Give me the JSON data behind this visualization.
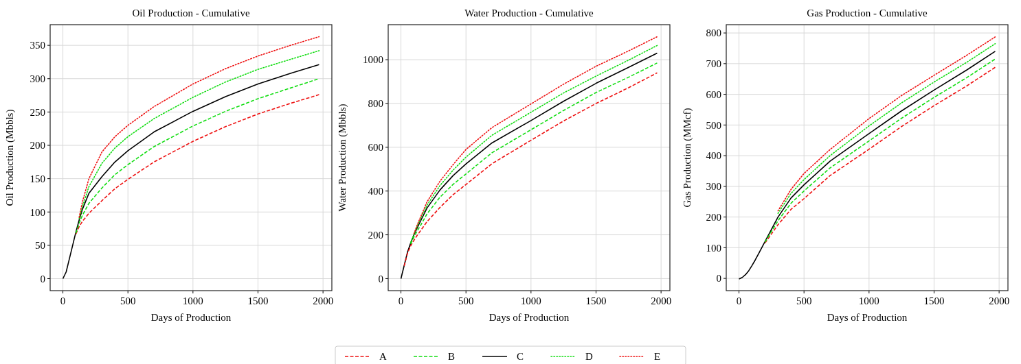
{
  "chart_data": [
    {
      "type": "line",
      "title": "Oil Production - Cumulative",
      "xlabel": "Days of Production",
      "ylabel": "Oil Production (Mbbls)",
      "x": [
        0,
        25,
        50,
        75,
        100,
        125,
        150,
        200,
        300,
        400,
        500,
        700,
        1000,
        1250,
        1500,
        1750,
        1970
      ],
      "xlim": [
        -98,
        2068
      ],
      "xticks": [
        0,
        500,
        1000,
        1500,
        2000
      ],
      "ylim": [
        -18,
        381
      ],
      "yticks": [
        0,
        50,
        100,
        150,
        200,
        250,
        300,
        350
      ],
      "grid": true,
      "legend": "bottom",
      "series": [
        {
          "name": "A",
          "color": "#ee1111",
          "line_style": "dashed",
          "values": [
            null,
            null,
            null,
            null,
            67,
            78,
            86,
            98,
            117,
            135,
            149,
            175,
            206,
            228,
            247,
            263,
            276
          ]
        },
        {
          "name": "B",
          "color": "#11dd11",
          "line_style": "dashed",
          "values": [
            null,
            null,
            null,
            null,
            68,
            83,
            95,
            113,
            136,
            156,
            171,
            198,
            229,
            251,
            270,
            286,
            300
          ]
        },
        {
          "name": "C",
          "color": "#000000",
          "line_style": "solid",
          "values": [
            0,
            10,
            30,
            50,
            70,
            88,
            104,
            128,
            153,
            175,
            192,
            220,
            251,
            273,
            292,
            308,
            321
          ]
        },
        {
          "name": "D",
          "color": "#11dd11",
          "line_style": "dotted",
          "values": [
            null,
            null,
            null,
            null,
            null,
            90,
            108,
            138,
            173,
            196,
            213,
            240,
            272,
            295,
            314,
            329,
            342
          ]
        },
        {
          "name": "E",
          "color": "#ee1111",
          "line_style": "dotted",
          "values": [
            null,
            null,
            null,
            null,
            null,
            92,
            115,
            150,
            190,
            213,
            230,
            258,
            292,
            315,
            334,
            350,
            363
          ]
        }
      ]
    },
    {
      "type": "line",
      "title": "Water Production - Cumulative",
      "xlabel": "Days of Production",
      "ylabel": "Water Production (Mbbls)",
      "x": [
        0,
        25,
        50,
        75,
        100,
        125,
        150,
        200,
        300,
        400,
        500,
        700,
        1000,
        1250,
        1500,
        1750,
        1970
      ],
      "xlim": [
        -98,
        2068
      ],
      "xticks": [
        0,
        500,
        1000,
        1500,
        2000
      ],
      "ylim": [
        -55,
        1160
      ],
      "yticks": [
        0,
        200,
        400,
        600,
        800,
        1000
      ],
      "grid": true,
      "series": [
        {
          "color": "#ee1111",
          "line_style": "dashed",
          "values": [
            null,
            58,
            115,
            150,
            175,
            198,
            218,
            260,
            325,
            383,
            430,
            525,
            632,
            720,
            800,
            872,
            940
          ]
        },
        {
          "color": "#11dd11",
          "line_style": "dashed",
          "values": [
            null,
            null,
            null,
            158,
            190,
            218,
            242,
            295,
            372,
            430,
            478,
            575,
            680,
            768,
            850,
            920,
            985
          ]
        },
        {
          "color": "#000000",
          "line_style": "solid",
          "values": [
            0,
            60,
            120,
            163,
            200,
            232,
            262,
            322,
            405,
            470,
            524,
            620,
            722,
            810,
            892,
            965,
            1030
          ]
        },
        {
          "color": "#11dd11",
          "line_style": "dotted",
          "values": [
            null,
            null,
            null,
            165,
            203,
            240,
            272,
            335,
            425,
            495,
            555,
            655,
            760,
            848,
            925,
            998,
            1065
          ]
        },
        {
          "color": "#ee1111",
          "line_style": "dotted",
          "values": [
            null,
            null,
            null,
            null,
            205,
            245,
            280,
            350,
            445,
            520,
            590,
            690,
            798,
            888,
            970,
            1040,
            1105
          ]
        }
      ]
    },
    {
      "type": "line",
      "title": "Gas Production - Cumulative",
      "xlabel": "Days of Production",
      "ylabel": "Gas Production (MMcf)",
      "x": [
        0,
        25,
        50,
        75,
        100,
        125,
        150,
        200,
        300,
        400,
        500,
        700,
        1000,
        1250,
        1500,
        1750,
        1970
      ],
      "xlim": [
        -98,
        2068
      ],
      "xticks": [
        0,
        500,
        1000,
        1500,
        2000
      ],
      "ylim": [
        -40,
        827
      ],
      "yticks": [
        0,
        100,
        200,
        300,
        400,
        500,
        600,
        700,
        800
      ],
      "grid": true,
      "series": [
        {
          "color": "#ee1111",
          "line_style": "dashed",
          "values": [
            null,
            null,
            null,
            null,
            null,
            null,
            null,
            115,
            175,
            225,
            260,
            335,
            421,
            495,
            563,
            627,
            688
          ]
        },
        {
          "color": "#11dd11",
          "line_style": "dashed",
          "values": [
            null,
            null,
            null,
            null,
            null,
            null,
            null,
            118,
            188,
            245,
            285,
            360,
            448,
            522,
            590,
            654,
            715
          ]
        },
        {
          "color": "#000000",
          "line_style": "solid",
          "values": [
            -2,
            3,
            12,
            25,
            42,
            60,
            80,
            120,
            200,
            262,
            305,
            382,
            472,
            546,
            614,
            679,
            740
          ]
        },
        {
          "color": "#11dd11",
          "line_style": "dotted",
          "values": [
            null,
            null,
            null,
            null,
            null,
            null,
            null,
            null,
            212,
            277,
            322,
            400,
            497,
            572,
            640,
            704,
            765
          ]
        },
        {
          "color": "#ee1111",
          "line_style": "dotted",
          "values": [
            null,
            null,
            null,
            null,
            null,
            null,
            null,
            null,
            220,
            290,
            342,
            420,
            521,
            596,
            662,
            727,
            787
          ]
        }
      ]
    }
  ]
}
